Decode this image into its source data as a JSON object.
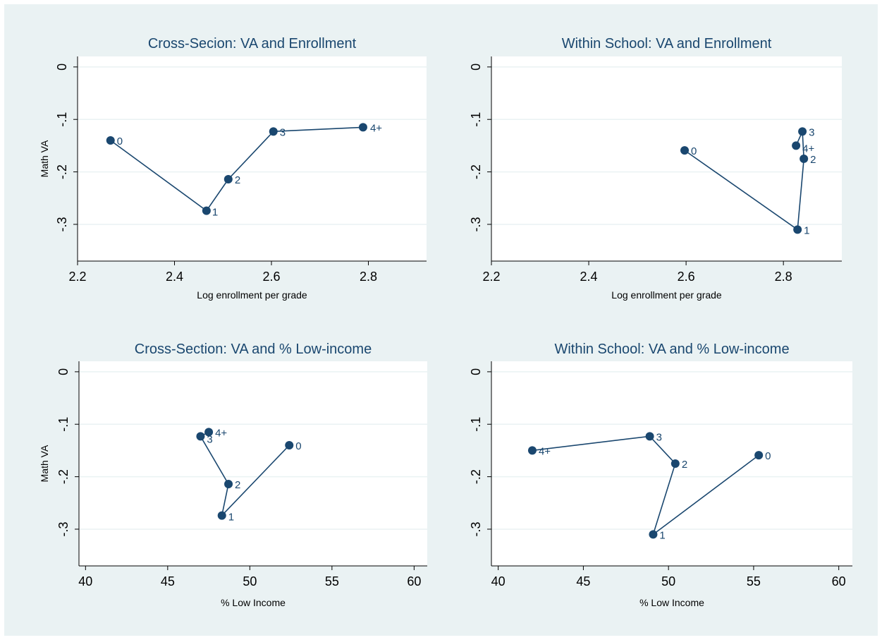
{
  "colors": {
    "background": "#eaf2f3",
    "plot_region": "#ffffff",
    "gridline": "#eaf2f3",
    "series": "#1a476f"
  },
  "chart_data": [
    {
      "type": "line",
      "title": "Cross-Secion: VA and Enrollment",
      "xlabel": "Log enrollment per grade",
      "ylabel": "Math VA",
      "xlim": [
        2.2,
        2.92
      ],
      "ylim": [
        -0.37,
        0.02
      ],
      "xticks": [
        2.2,
        2.4,
        2.6,
        2.8
      ],
      "xtick_labels": [
        "2.2",
        "2.4",
        "2.6",
        "2.8"
      ],
      "yticks": [
        0,
        -0.1,
        -0.2,
        -0.3
      ],
      "ytick_labels": [
        "0",
        "-.1",
        "-.2",
        "-.3"
      ],
      "grid": true,
      "points": [
        {
          "label": "0",
          "x": 2.268,
          "y": -0.14
        },
        {
          "label": "1",
          "x": 2.466,
          "y": -0.274
        },
        {
          "label": "2",
          "x": 2.511,
          "y": -0.214
        },
        {
          "label": "3",
          "x": 2.604,
          "y": -0.123
        },
        {
          "label": "4+",
          "x": 2.789,
          "y": -0.115
        }
      ]
    },
    {
      "type": "line",
      "title": "Within School: VA and Enrollment",
      "xlabel": "Log enrollment per grade",
      "ylabel": "",
      "xlim": [
        2.2,
        2.92
      ],
      "ylim": [
        -0.37,
        0.02
      ],
      "xticks": [
        2.2,
        2.4,
        2.6,
        2.8
      ],
      "xtick_labels": [
        "2.2",
        "2.4",
        "2.6",
        "2.8"
      ],
      "yticks": [
        0,
        -0.1,
        -0.2,
        -0.3
      ],
      "ytick_labels": [
        "0",
        "-.1",
        "-.2",
        "-.3"
      ],
      "grid": true,
      "points": [
        {
          "label": "0",
          "x": 2.597,
          "y": -0.159
        },
        {
          "label": "1",
          "x": 2.829,
          "y": -0.31
        },
        {
          "label": "2",
          "x": 2.842,
          "y": -0.175
        },
        {
          "label": "3",
          "x": 2.839,
          "y": -0.123
        },
        {
          "label": "4+",
          "x": 2.826,
          "y": -0.15
        }
      ]
    },
    {
      "type": "line",
      "title": "Cross-Section: VA and % Low-income",
      "xlabel": "% Low Income",
      "ylabel": "Math VA",
      "xlim": [
        39.6,
        60.8
      ],
      "ylim": [
        -0.37,
        0.02
      ],
      "xticks": [
        40,
        45,
        50,
        55,
        60
      ],
      "xtick_labels": [
        "40",
        "45",
        "50",
        "55",
        "60"
      ],
      "yticks": [
        0,
        -0.1,
        -0.2,
        -0.3
      ],
      "ytick_labels": [
        "0",
        "-.1",
        "-.2",
        "-.3"
      ],
      "grid": true,
      "points": [
        {
          "label": "0",
          "x": 52.4,
          "y": -0.14
        },
        {
          "label": "1",
          "x": 48.3,
          "y": -0.274
        },
        {
          "label": "2",
          "x": 48.7,
          "y": -0.214
        },
        {
          "label": "3",
          "x": 47.0,
          "y": -0.123
        },
        {
          "label": "4+",
          "x": 47.5,
          "y": -0.115
        }
      ]
    },
    {
      "type": "line",
      "title": "Within School: VA and % Low-income",
      "xlabel": "% Low Income",
      "ylabel": "",
      "xlim": [
        39.6,
        60.8
      ],
      "ylim": [
        -0.37,
        0.02
      ],
      "xticks": [
        40,
        45,
        50,
        55,
        60
      ],
      "xtick_labels": [
        "40",
        "45",
        "50",
        "55",
        "60"
      ],
      "yticks": [
        0,
        -0.1,
        -0.2,
        -0.3
      ],
      "ytick_labels": [
        "0",
        "-.1",
        "-.2",
        "-.3"
      ],
      "grid": true,
      "points": [
        {
          "label": "0",
          "x": 55.3,
          "y": -0.159
        },
        {
          "label": "1",
          "x": 49.1,
          "y": -0.31
        },
        {
          "label": "2",
          "x": 50.4,
          "y": -0.175
        },
        {
          "label": "3",
          "x": 48.9,
          "y": -0.123
        },
        {
          "label": "4+",
          "x": 42.0,
          "y": -0.15
        }
      ]
    }
  ]
}
